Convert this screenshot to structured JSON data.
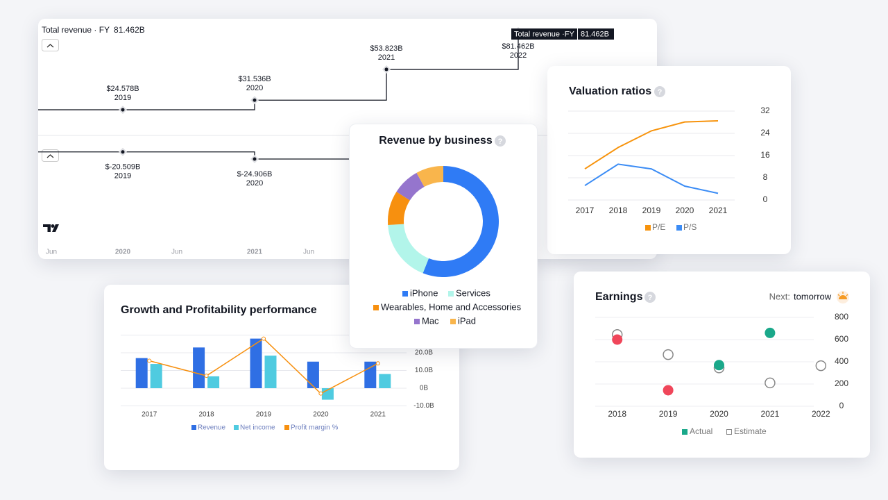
{
  "chart_data": [
    {
      "type": "step",
      "title": "Total revenue · FY",
      "title_value": "81.462B",
      "tooltip": {
        "label": "Total revenue ·FY",
        "value": "81.462B"
      },
      "categories": [
        "2019",
        "2020",
        "2021",
        "2022"
      ],
      "series": [
        {
          "color": "#131722",
          "values": [
            24.578,
            31.536,
            53.823,
            81.462
          ],
          "value_labels": [
            "$24.578B",
            "$31.536B",
            "$53.823B",
            "$81.462B"
          ],
          "ylim": [
            5,
            90
          ]
        },
        {
          "color": "#131722",
          "values": [
            -20.509,
            -24.906,
            null,
            null
          ],
          "value_labels": [
            "$-20.509B",
            "$-24.906B",
            null,
            null
          ],
          "ylim": [
            -40,
            -15
          ]
        }
      ],
      "xtick_labels": [
        "Jun",
        "2020",
        "Jun",
        "2021",
        "Jun"
      ]
    },
    {
      "type": "donut",
      "title": "Revenue by business",
      "categories": [
        "iPhone",
        "Services",
        "Wearables, Home and Accessories",
        "Mac",
        "iPad"
      ],
      "values": [
        56,
        18,
        10,
        8,
        8
      ],
      "colors": [
        "#2f7bf5",
        "#b2f5ea",
        "#f7900f",
        "#9575cd",
        "#f9b54c"
      ]
    },
    {
      "type": "line",
      "title": "Valuation ratios",
      "categories": [
        "2017",
        "2018",
        "2019",
        "2020",
        "2021"
      ],
      "series": [
        {
          "name": "P/E",
          "color": "#f7930c",
          "values": [
            11.2,
            18.9,
            24.9,
            28.1,
            28.5
          ]
        },
        {
          "name": "P/S",
          "color": "#3b8cf5",
          "values": [
            5.2,
            12.9,
            11.2,
            5.0,
            2.4
          ]
        }
      ],
      "ylim": [
        0,
        32
      ],
      "yticks": [
        0,
        8,
        16,
        24,
        32
      ],
      "grid": true
    },
    {
      "type": "bar",
      "title": "Growth and Profitability performance",
      "categories": [
        "2017",
        "2018",
        "2019",
        "2020",
        "2021"
      ],
      "series": [
        {
          "name": "Revenue",
          "type": "bar",
          "color": "#2f6fe4",
          "values": [
            17,
            23,
            28,
            15,
            15
          ]
        },
        {
          "name": "Net income",
          "type": "bar",
          "color": "#4fcbe0",
          "values": [
            13.7,
            6.7,
            18.4,
            -6.5,
            8
          ]
        },
        {
          "name": "Profit margin %",
          "type": "line",
          "color": "#f7900f",
          "values": [
            15.5,
            7,
            28,
            -3,
            14
          ]
        }
      ],
      "ylim": [
        -12,
        30
      ],
      "yticks": [
        {
          "value": 20,
          "label": "20.0B"
        },
        {
          "value": 10,
          "label": "10.0B"
        },
        {
          "value": 0,
          "label": "0B"
        },
        {
          "value": -10,
          "label": "-10.0B"
        }
      ],
      "grid": true
    },
    {
      "type": "scatter",
      "title": "Earnings",
      "note_label": "Next:",
      "note_value": "tomorrow",
      "categories": [
        "2018",
        "2019",
        "2020",
        "2021",
        "2022"
      ],
      "series": [
        {
          "name": "Estimate",
          "color": "#888888",
          "hollow": true,
          "values": [
            645,
            465,
            345,
            210,
            365
          ]
        },
        {
          "name": "Actual",
          "color": "#1aa88a",
          "values": [
            600,
            144,
            370,
            660,
            null
          ],
          "point_colors": [
            "#f0465a",
            "#f0465a",
            "#1aa88a",
            "#1aa88a",
            null
          ]
        }
      ],
      "ylim": [
        0,
        800
      ],
      "yticks": [
        0,
        200,
        400,
        600,
        800
      ],
      "grid": true
    }
  ]
}
